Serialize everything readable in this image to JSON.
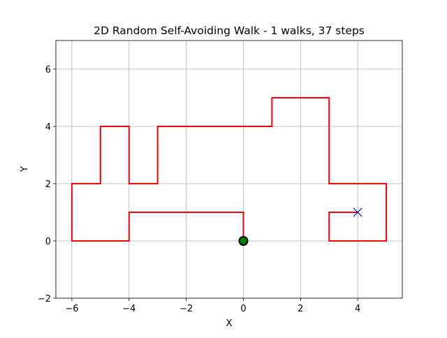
{
  "chart_data": {
    "type": "line",
    "title": "2D Random Self-Avoiding Walk - 1 walks, 37 steps",
    "xlabel": "X",
    "ylabel": "Y",
    "series": [
      {
        "color": "#ff0000",
        "start_color": "#008000",
        "end_color": "#0000ff",
        "x": [
          0,
          0,
          -1,
          -2,
          -3,
          -4,
          -4,
          -5,
          -6,
          -6,
          -6,
          -5,
          -5,
          -5,
          -4,
          -4,
          -4,
          -3,
          -3,
          -3,
          -2,
          -1,
          0,
          1,
          1,
          2,
          3,
          3,
          3,
          3,
          4,
          5,
          5,
          5,
          4,
          3,
          3,
          4
        ],
        "y": [
          0,
          1,
          1,
          1,
          1,
          1,
          0,
          0,
          0,
          1,
          2,
          2,
          3,
          4,
          4,
          3,
          2,
          2,
          3,
          4,
          4,
          4,
          4,
          4,
          5,
          5,
          5,
          4,
          3,
          2,
          2,
          2,
          1,
          0,
          0,
          0,
          1,
          1
        ]
      }
    ],
    "xlim": [
      -6.56,
      5.56
    ],
    "xticks": [
      {
        "value": -6,
        "label": "−6"
      },
      {
        "value": -4,
        "label": "−4"
      },
      {
        "value": -2,
        "label": "−2"
      },
      0,
      2,
      4
    ],
    "ylim": [
      -2,
      7
    ],
    "yticks": [
      {
        "value": -2,
        "label": "−2"
      },
      0,
      2,
      4,
      6
    ],
    "grid": true
  }
}
